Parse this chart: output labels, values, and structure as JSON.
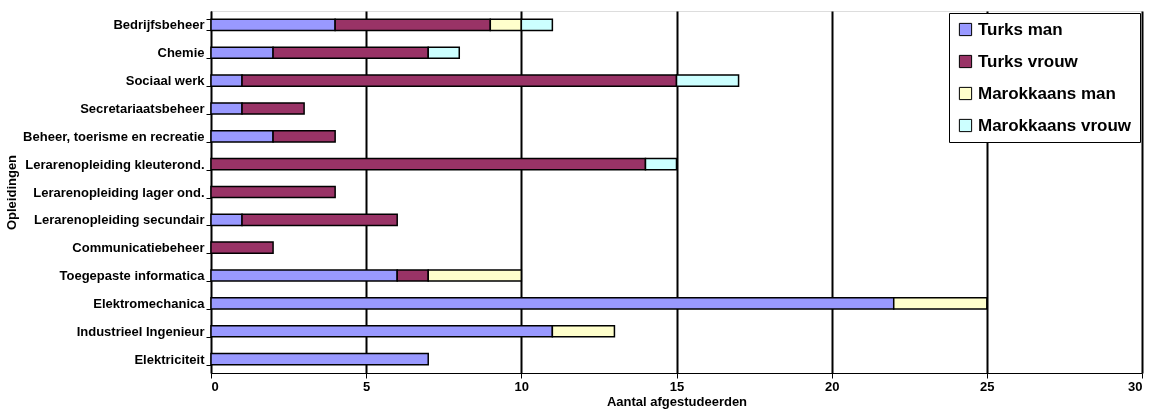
{
  "chart_data": {
    "type": "bar",
    "orientation": "horizontal",
    "stacked": true,
    "xlabel": "Aantal afgestudeerden",
    "ylabel": "Opleidingen",
    "categories": [
      "Bedrijfsbeheer",
      "Chemie",
      "Sociaal werk",
      "Secretariaatsbeheer",
      "Beheer, toerisme en recreatie",
      "Lerarenopleiding kleuterond.",
      "Lerarenopleiding lager ond.",
      "Lerarenopleiding secundair",
      "Communicatiebeheer",
      "Toegepaste informatica",
      "Elektromechanica",
      "Industrieel Ingenieur",
      "Elektriciteit"
    ],
    "series": [
      {
        "name": "Turks man",
        "color": "#9999ff",
        "values": [
          4,
          2,
          1,
          1,
          2,
          0,
          0,
          1,
          0,
          6,
          22,
          11,
          7
        ]
      },
      {
        "name": "Turks vrouw",
        "color": "#993366",
        "values": [
          5,
          5,
          14,
          2,
          2,
          14,
          4,
          5,
          2,
          1,
          0,
          0,
          0
        ]
      },
      {
        "name": "Marokkaans man",
        "color": "#ffffcc",
        "values": [
          1,
          0,
          0,
          0,
          0,
          0,
          0,
          0,
          0,
          3,
          3,
          2,
          0
        ]
      },
      {
        "name": "Marokkaans vrouw",
        "color": "#ccffff",
        "values": [
          1,
          1,
          2,
          0,
          0,
          1,
          0,
          0,
          0,
          0,
          0,
          0,
          0
        ]
      }
    ],
    "xlim": [
      0,
      30
    ],
    "xticks": [
      0,
      5,
      10,
      15,
      20,
      25,
      30
    ],
    "grid": "x",
    "legend": "top right"
  }
}
